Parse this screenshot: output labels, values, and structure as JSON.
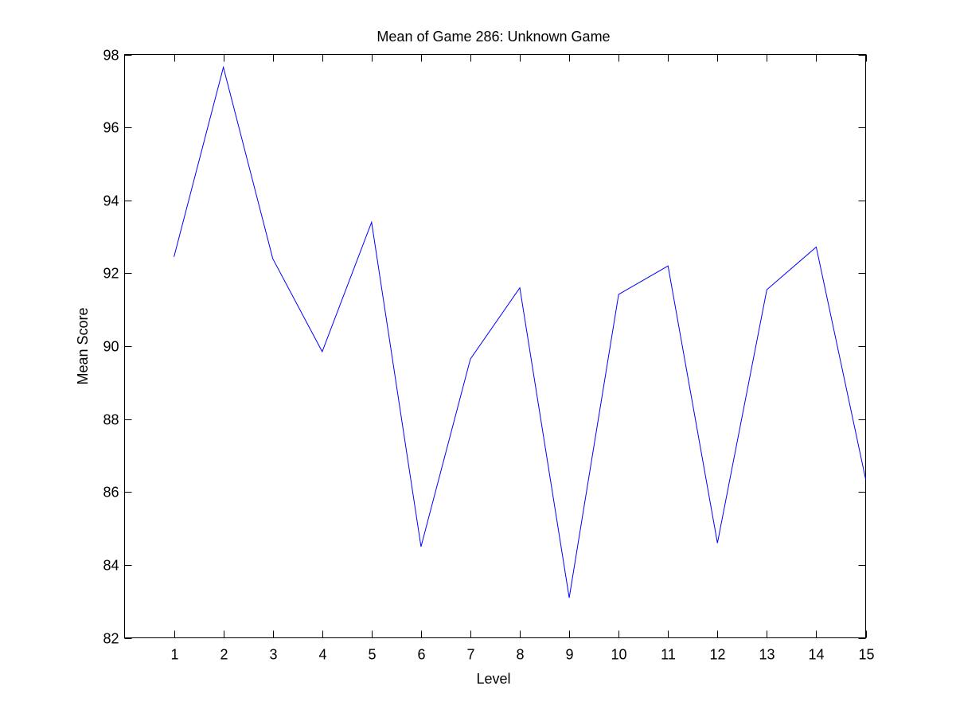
{
  "chart_data": {
    "type": "line",
    "title": "Mean of Game 286: Unknown Game",
    "xlabel": "Level",
    "ylabel": "Mean Score",
    "xlim": [
      0,
      15
    ],
    "ylim": [
      82,
      98
    ],
    "xticks": [
      1,
      2,
      3,
      4,
      5,
      6,
      7,
      8,
      9,
      10,
      11,
      12,
      13,
      14,
      15
    ],
    "yticks": [
      82,
      84,
      86,
      88,
      90,
      92,
      94,
      96,
      98
    ],
    "grid": false,
    "line_color": "#0000ff",
    "series": [
      {
        "x": [
          1,
          2,
          3,
          4,
          5,
          6,
          7,
          8,
          9,
          10,
          11,
          12,
          13,
          14,
          15
        ],
        "values": [
          92.45,
          97.65,
          92.4,
          89.85,
          93.4,
          84.5,
          89.65,
          91.6,
          83.1,
          91.42,
          92.2,
          84.6,
          91.55,
          92.72,
          86.35
        ]
      }
    ]
  }
}
